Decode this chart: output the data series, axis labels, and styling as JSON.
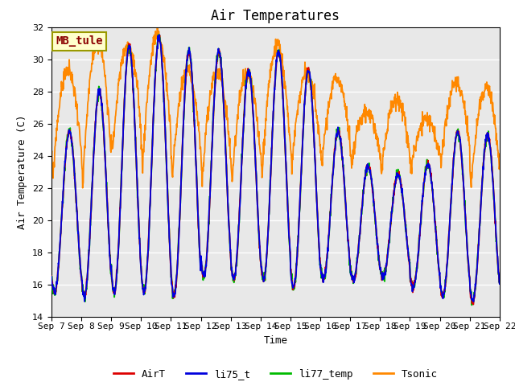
{
  "title": "Air Temperatures",
  "ylabel": "Air Temperature (C)",
  "xlabel": "Time",
  "ylim": [
    14,
    32
  ],
  "yticks": [
    14,
    16,
    18,
    20,
    22,
    24,
    26,
    28,
    30,
    32
  ],
  "annotation_text": "MB_tule",
  "annotation_color": "#8B0000",
  "annotation_bg": "#FFFFCC",
  "annotation_border": "#999900",
  "colors": {
    "AirT": "#DD0000",
    "li75_t": "#0000DD",
    "li77_temp": "#00BB00",
    "Tsonic": "#FF8800"
  },
  "plot_bg": "#E8E8E8",
  "fig_bg": "#FFFFFF",
  "start_day": 7,
  "end_day": 22,
  "n_points": 1440,
  "title_fontsize": 12,
  "label_fontsize": 9,
  "tick_fontsize": 8,
  "legend_fontsize": 9,
  "daily_maxes": [
    25.5,
    28.0,
    30.8,
    31.3,
    30.5,
    30.5,
    29.3,
    30.5,
    29.3,
    25.5,
    23.3,
    22.8,
    23.5,
    25.5,
    25.3,
    25.3
  ],
  "daily_mins": [
    15.5,
    15.3,
    15.5,
    15.5,
    15.3,
    16.5,
    16.3,
    16.3,
    15.8,
    16.3,
    16.3,
    16.5,
    15.8,
    15.3,
    15.0,
    15.0
  ],
  "tsonic_maxes": [
    29.3,
    31.1,
    30.8,
    31.5,
    29.3,
    29.2,
    29.0,
    30.8,
    29.1,
    28.8,
    26.7,
    27.5,
    26.3,
    28.5,
    28.2,
    27.8
  ],
  "tsonic_mins": [
    22.5,
    21.8,
    24.0,
    23.0,
    22.5,
    22.3,
    22.3,
    22.5,
    23.0,
    23.2,
    23.3,
    22.8,
    23.0,
    23.3,
    21.8,
    22.3
  ]
}
